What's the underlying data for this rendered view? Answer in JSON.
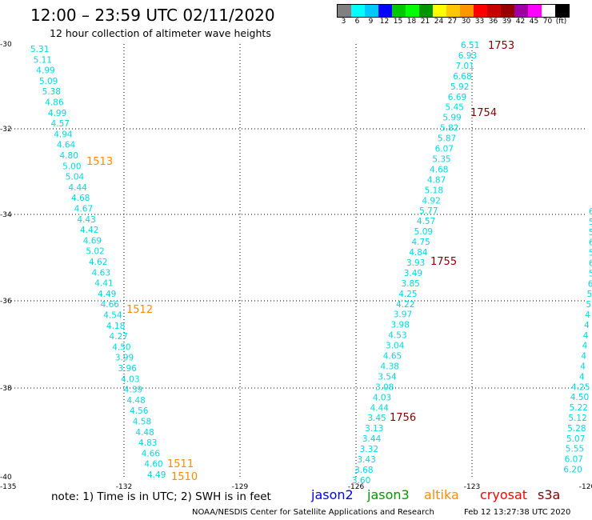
{
  "header": {
    "title": "12:00 – 23:59 UTC 02/11/2020",
    "subtitle": "12 hour collection of altimeter wave heights"
  },
  "legend": {
    "colors": [
      "#808080",
      "#00ffff",
      "#00c8ff",
      "#0000ff",
      "#00c800",
      "#00ff00",
      "#009600",
      "#ffff00",
      "#ffc800",
      "#ff9600",
      "#ff0000",
      "#c80000",
      "#960000",
      "#a000a0",
      "#ff00ff",
      "#ffffff",
      "#000000"
    ],
    "labels": [
      "3",
      "6",
      "9",
      "12",
      "15",
      "18",
      "21",
      "24",
      "27",
      "30",
      "33",
      "36",
      "39",
      "42",
      "45",
      "70",
      "(ft)"
    ]
  },
  "map": {
    "lon_ticks": [
      "-135",
      "-132",
      "-129",
      "-126",
      "-123",
      "-120"
    ],
    "lat_ticks": [
      "-30",
      "-32",
      "-34",
      "-36",
      "-38",
      "-40"
    ]
  },
  "tracks": [
    {
      "color": "#00d8e0",
      "values": [
        "5.31",
        "5.11",
        "4.99",
        "5.09",
        "5.38",
        "4.86",
        "4.99",
        "4.57",
        "4.94",
        "4.64",
        "4.80",
        "5.00",
        "5.04",
        "4.44",
        "4.68",
        "4.67",
        "4.43",
        "4.42",
        "4.69",
        "5.02",
        "4.62",
        "4.63",
        "4.41",
        "4.49",
        "4.66",
        "4.54",
        "4.18",
        "4.27",
        "4.50",
        "3.99",
        "3.96",
        "4.03",
        "4.39",
        "4.48",
        "4.56",
        "4.58",
        "4.48",
        "4.83",
        "4.66",
        "4.60",
        "4.49"
      ]
    },
    {
      "color": "#00d8e0",
      "values": [
        "6.51",
        "6.93",
        "7.01",
        "6.68",
        "5.92",
        "6.69",
        "5.45",
        "5.99",
        "5.82",
        "5.87",
        "6.07",
        "5.35",
        "4.68",
        "4.87",
        "5.18",
        "4.92",
        "5.77",
        "4.57",
        "5.09",
        "4.75",
        "4.84",
        "3.93",
        "3.49",
        "3.85",
        "4.25",
        "4.22",
        "3.97",
        "3.98",
        "4.53",
        "3.04",
        "4.65",
        "4.38",
        "3.54",
        "3.08",
        "4.03",
        "4.44",
        "3.45",
        "3.13",
        "3.44",
        "3.32",
        "3.43",
        "3.68",
        "3.60"
      ]
    },
    {
      "color": "#00d8e0",
      "values": [
        "6",
        "5",
        "5",
        "6",
        "5",
        "6",
        "5",
        "6",
        "5",
        "5",
        "4",
        "4",
        "4",
        "4",
        "4",
        "4",
        "4",
        "4.25",
        "4.50",
        "5.22",
        "5.12",
        "5.28",
        "5.07",
        "5.55",
        "6.07",
        "6.20"
      ]
    }
  ],
  "time_labels": [
    {
      "text": "1753",
      "color": "#800000"
    },
    {
      "text": "1754",
      "color": "#800000"
    },
    {
      "text": "1755",
      "color": "#800000"
    },
    {
      "text": "1756",
      "color": "#800000"
    },
    {
      "text": "1513",
      "color": "#ff8c00"
    },
    {
      "text": "1512",
      "color": "#ff8c00"
    },
    {
      "text": "1511",
      "color": "#ff8c00"
    },
    {
      "text": "1510",
      "color": "#ff8c00"
    }
  ],
  "note": "note: 1) Time is in UTC; 2) SWH is in feet",
  "satellites": [
    {
      "name": "jason2",
      "color": "#0000ff"
    },
    {
      "name": "jason3",
      "color": "#009900"
    },
    {
      "name": "altika",
      "color": "#ff8c00"
    },
    {
      "name": "cryosat",
      "color": "#ff0000"
    },
    {
      "name": "s3a",
      "color": "#800000"
    }
  ],
  "footer": {
    "credit": "NOAA/NESDIS Center for Satellite Applications and Research",
    "timestamp": "Feb 12 13:27:38 UTC 2020"
  }
}
